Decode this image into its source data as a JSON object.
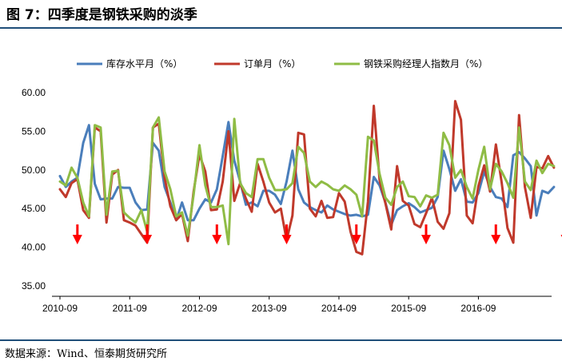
{
  "page": {
    "title": "图 7：四季度是钢铁采购的淡季",
    "source": "数据来源：Wind、恒泰期货研究所"
  },
  "chart_data": {
    "type": "line",
    "title": "图 7：四季度是钢铁采购的淡季",
    "xlabel": "",
    "ylabel": "",
    "ylim": [
      35,
      60
    ],
    "yticks": [
      "35.00",
      "40.00",
      "45.00",
      "50.00",
      "55.00",
      "60.00"
    ],
    "xticks": [
      "2010-09",
      "2011-09",
      "2012-09",
      "2013-09",
      "2014-09",
      "2015-09",
      "2016-09"
    ],
    "x_start": "2010-09",
    "grid": false,
    "legend_position": "top",
    "series": [
      {
        "name": "库存水平月（%）",
        "color": "#4a7ebb",
        "values": [
          49.2,
          47.8,
          48.5,
          49.0,
          53.5,
          55.8,
          48.2,
          46.2,
          46.3,
          46.3,
          47.8,
          47.7,
          47.7,
          45.8,
          44.8,
          44.9,
          53.5,
          52.5,
          47.8,
          45.8,
          43.5,
          45.8,
          43.5,
          43.5,
          45.0,
          46.2,
          45.8,
          47.5,
          51.8,
          56.2,
          51.2,
          48.5,
          45.5,
          45.8,
          45.3,
          47.3,
          47.3,
          46.8,
          45.6,
          48.5,
          52.5,
          47.5,
          45.8,
          45.2,
          44.8,
          44.5,
          45.4,
          44.9,
          44.6,
          44.3,
          44.1,
          44.2,
          44.0,
          44.2,
          49.1,
          48.0,
          45.8,
          42.9,
          44.8,
          45.3,
          45.7,
          45.2,
          44.5,
          44.8,
          45.1,
          46.5,
          52.5,
          50.1,
          47.3,
          48.8,
          45.9,
          45.8,
          47.0,
          49.8,
          47.8,
          46.5,
          46.3,
          45.2,
          51.9,
          52.3,
          51.5,
          50.5,
          44.1,
          47.3,
          47.0,
          47.8
        ]
      },
      {
        "name": "订单月（%）",
        "color": "#c0392b",
        "values": [
          47.5,
          46.5,
          48.3,
          48.8,
          44.8,
          43.8,
          55.5,
          55.0,
          43.2,
          49.4,
          50.0,
          43.5,
          43.2,
          42.8,
          41.7,
          40.6,
          55.5,
          56.0,
          49.0,
          45.3,
          43.5,
          44.3,
          40.8,
          47.2,
          52.0,
          49.8,
          44.8,
          44.9,
          48.5,
          55.0,
          46.0,
          48.3,
          46.3,
          44.6,
          50.8,
          48.5,
          45.8,
          44.5,
          45.0,
          40.9,
          44.1,
          54.8,
          54.6,
          45.0,
          44.0,
          46.0,
          43.8,
          43.9,
          47.0,
          45.9,
          42.0,
          39.4,
          39.1,
          45.9,
          58.3,
          48.7,
          45.7,
          42.3,
          50.5,
          46.0,
          45.4,
          43.0,
          42.6,
          44.4,
          46.4,
          43.3,
          42.4,
          44.4,
          58.9,
          56.5,
          44.1,
          43.1,
          47.9,
          50.6,
          47.2,
          53.3,
          48.4,
          42.5,
          40.6,
          57.1,
          47.8,
          43.8,
          50.4,
          50.2,
          51.8,
          50.3
        ]
      },
      {
        "name": "钢铁采购经理人指数月（%）",
        "color": "#8fbc45",
        "values": [
          48.5,
          48.0,
          50.3,
          49.0,
          45.8,
          44.0,
          55.8,
          55.5,
          44.2,
          49.8,
          49.9,
          44.5,
          43.8,
          43.2,
          44.8,
          42.0,
          55.5,
          56.8,
          49.8,
          47.5,
          44.0,
          44.5,
          41.5,
          46.8,
          53.2,
          48.0,
          45.2,
          45.2,
          45.4,
          40.4,
          56.6,
          48.3,
          47.0,
          46.5,
          51.4,
          51.4,
          49.0,
          47.4,
          47.4,
          47.5,
          48.3,
          53.0,
          52.2,
          48.5,
          47.8,
          48.5,
          48.1,
          47.5,
          47.3,
          48.0,
          47.5,
          46.8,
          44.0,
          54.3,
          53.8,
          49.5,
          46.4,
          45.5,
          47.8,
          48.5,
          46.6,
          46.5,
          45.3,
          46.7,
          46.4,
          46.8,
          54.8,
          53.2,
          49.0,
          50.0,
          47.8,
          46.3,
          50.0,
          53.0,
          47.5,
          50.8,
          49.8,
          48.3,
          46.4,
          55.5,
          48.5,
          47.4,
          51.2,
          49.6,
          50.8,
          50.5
        ]
      }
    ],
    "low_season_markers": [
      "2010-12",
      "2011-12",
      "2012-12",
      "2013-12",
      "2014-12",
      "2015-12",
      "2016-12",
      "2017-12"
    ],
    "marker_color": "#ff0000"
  }
}
